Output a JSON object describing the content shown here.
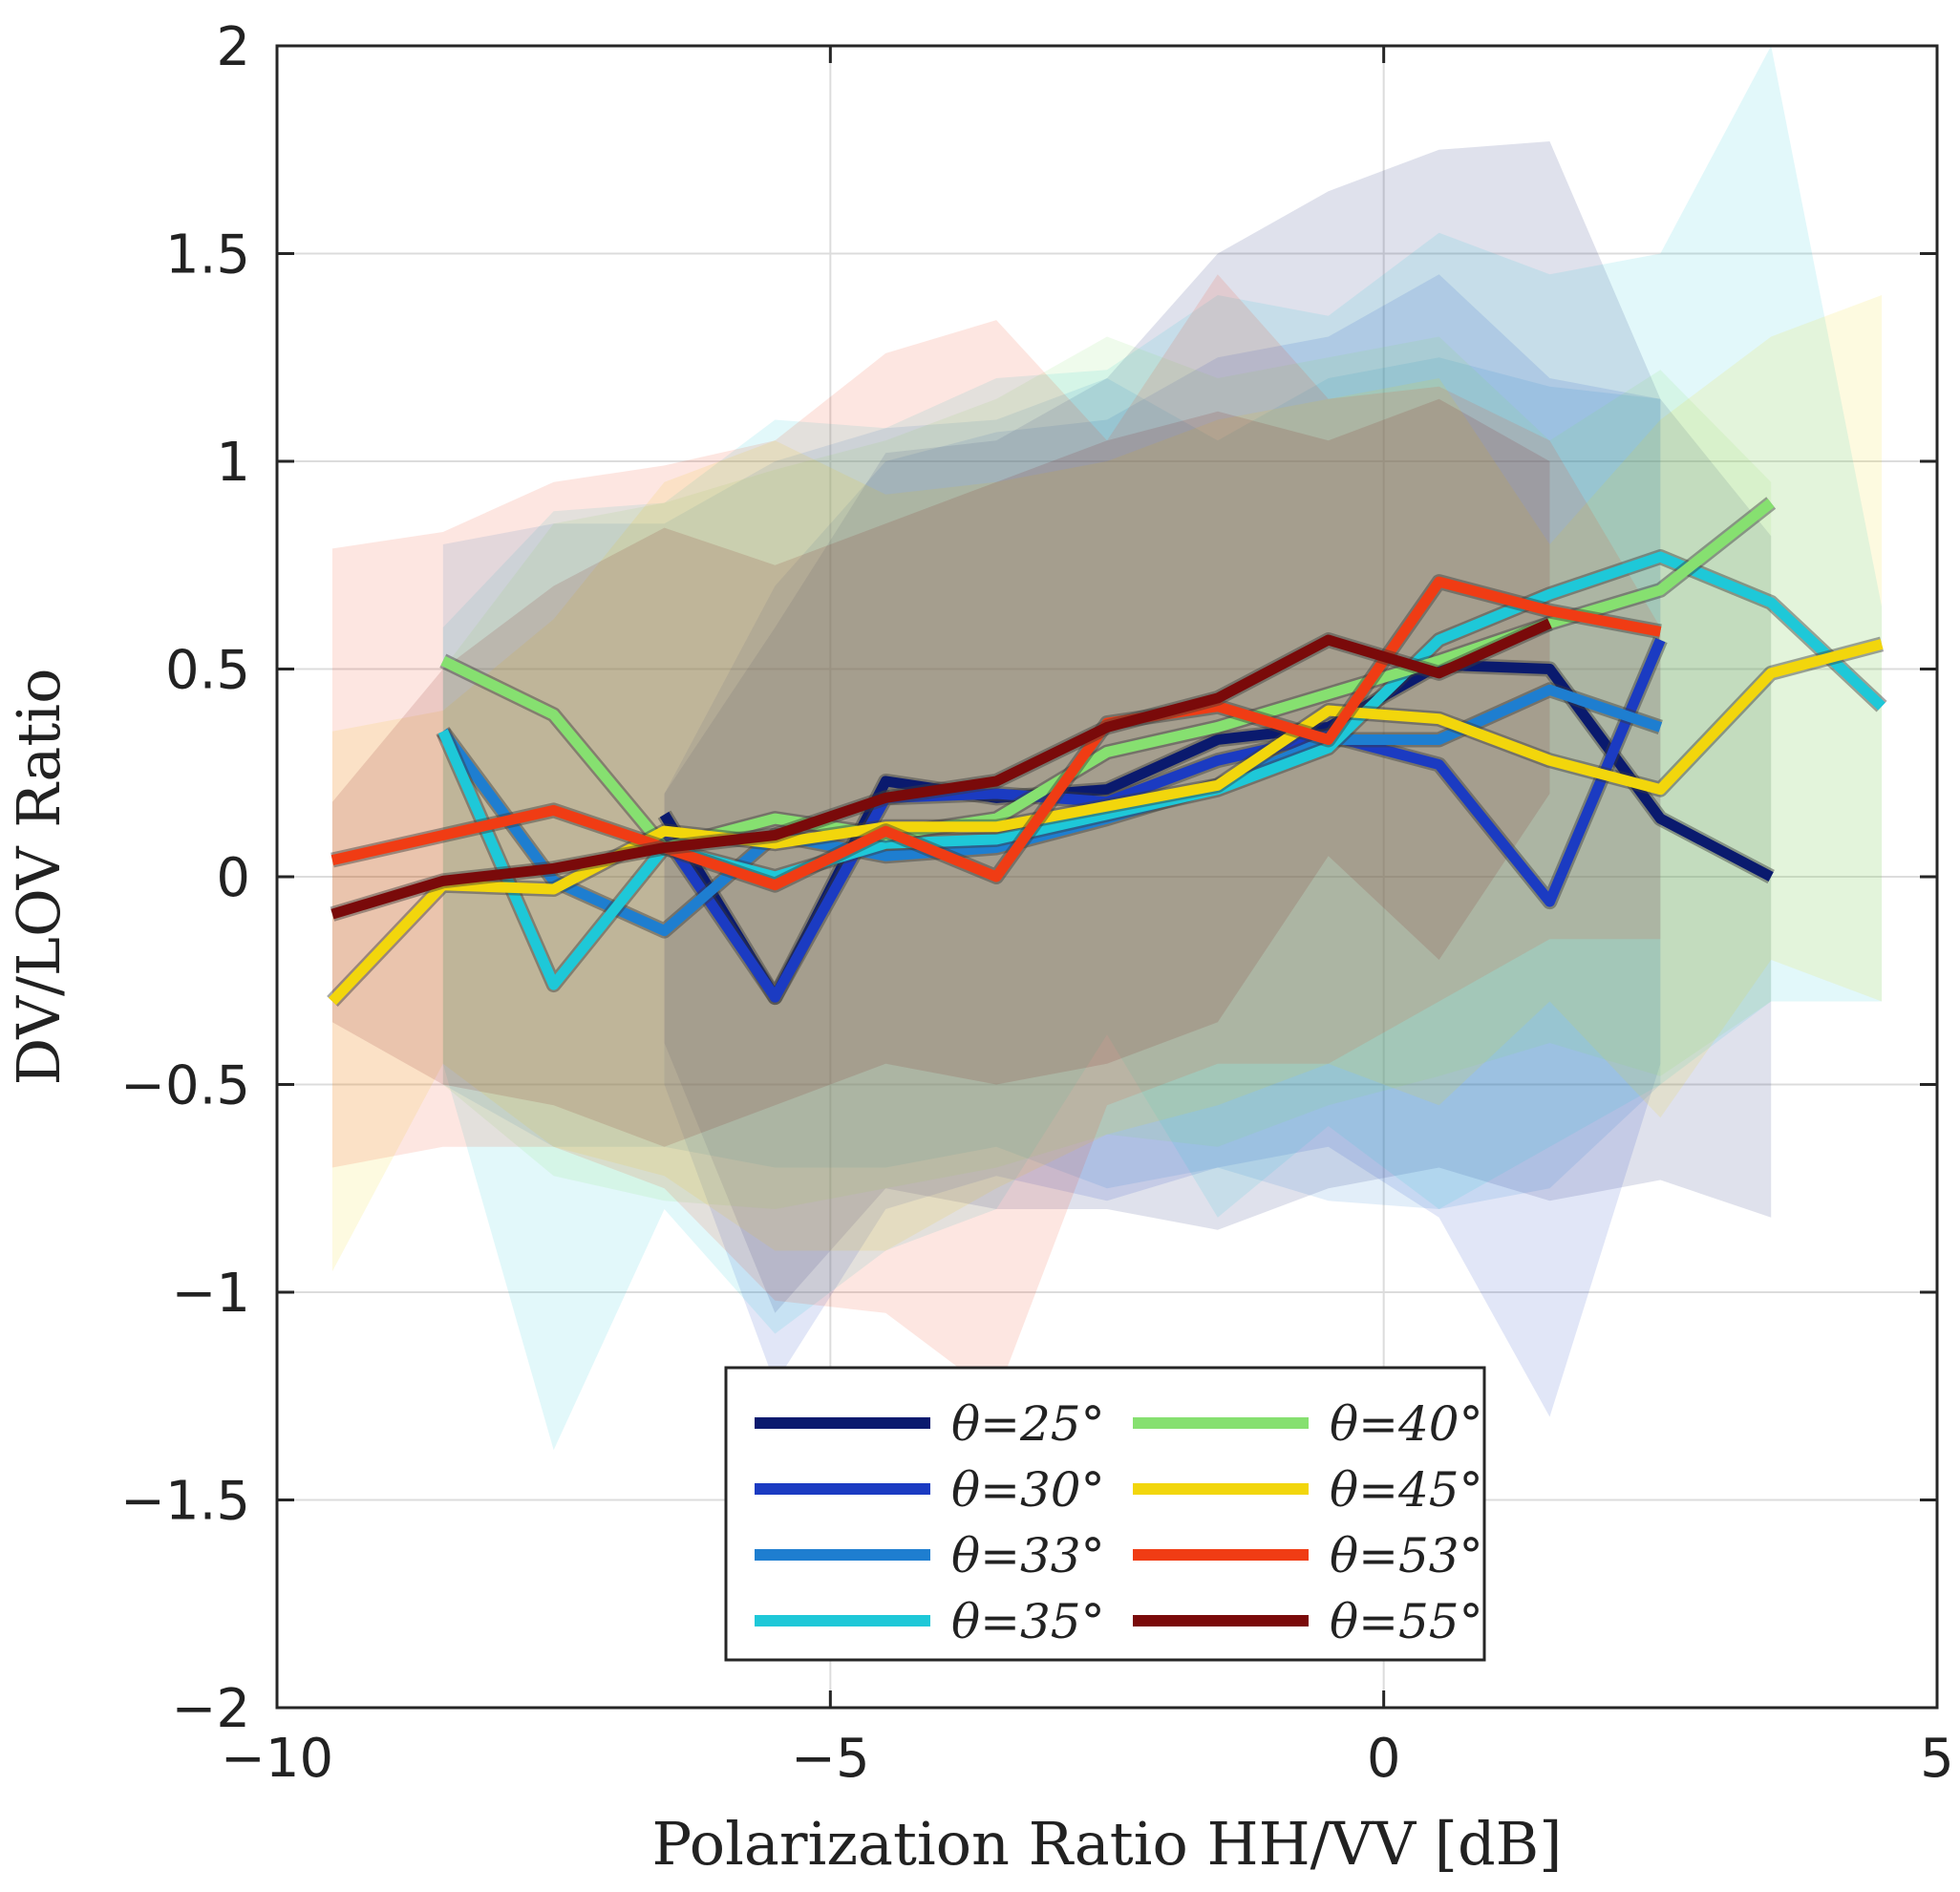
{
  "chart_data": {
    "type": "line",
    "title": "",
    "xlabel": "Polarization Ratio HH/VV [dB]",
    "ylabel": "DV/LOV Ratio",
    "xlim": [
      -10,
      5
    ],
    "ylim": [
      -2,
      2
    ],
    "xticks": [
      -10,
      -5,
      0,
      5
    ],
    "xtick_labels": [
      "−10",
      "−5",
      "0",
      "5"
    ],
    "yticks": [
      -2,
      -1.5,
      -1,
      -0.5,
      0,
      0.5,
      1,
      1.5,
      2
    ],
    "ytick_labels": [
      "−2",
      "−1.5",
      "−1",
      "−0.5",
      "0",
      "0.5",
      "1",
      "1.5",
      "2"
    ],
    "grid": true,
    "legend_position": "bottom-center",
    "series": [
      {
        "name": "θ=25°",
        "color": "#0a1a6e",
        "x": [
          -6.5,
          -5.5,
          -4.5,
          -3.5,
          -2.5,
          -1.5,
          -0.5,
          0.5,
          1.5,
          2.5,
          3.5
        ],
        "y": [
          0.15,
          -0.29,
          0.23,
          0.19,
          0.21,
          0.33,
          0.36,
          0.51,
          0.5,
          0.14,
          0.0
        ],
        "upper": [
          0.2,
          0.6,
          1.02,
          1.05,
          1.2,
          1.5,
          1.65,
          1.75,
          1.77,
          1.15,
          0.82
        ],
        "lower": [
          -0.4,
          -1.05,
          -0.75,
          -0.8,
          -0.8,
          -0.85,
          -0.75,
          -0.7,
          -0.78,
          -0.73,
          -0.82
        ]
      },
      {
        "name": "θ=30°",
        "color": "#1b3bc2",
        "x": [
          -6.5,
          -5.5,
          -4.5,
          -3.5,
          -2.5,
          -1.5,
          -0.5,
          0.5,
          1.5,
          2.5
        ],
        "y": [
          0.1,
          -0.29,
          0.19,
          0.2,
          0.18,
          0.28,
          0.34,
          0.27,
          -0.06,
          0.57
        ],
        "upper": [
          0.2,
          0.7,
          1.0,
          1.07,
          1.1,
          1.25,
          1.3,
          1.45,
          1.2,
          1.15
        ],
        "lower": [
          -0.5,
          -1.22,
          -0.8,
          -0.72,
          -0.78,
          -0.7,
          -0.65,
          -0.82,
          -1.3,
          -0.45
        ]
      },
      {
        "name": "θ=33°",
        "color": "#1e7ed0",
        "x": [
          -8.5,
          -7.5,
          -6.5,
          -5.5,
          -4.5,
          -3.5,
          -2.5,
          -1.5,
          -0.5,
          0.5,
          1.5,
          2.5
        ],
        "y": [
          0.35,
          -0.01,
          -0.13,
          0.1,
          0.05,
          0.07,
          0.14,
          0.22,
          0.33,
          0.33,
          0.45,
          0.36
        ],
        "upper": [
          0.8,
          0.85,
          0.85,
          1.0,
          1.08,
          1.1,
          1.2,
          1.05,
          1.2,
          1.25,
          1.18,
          1.15
        ],
        "lower": [
          -0.5,
          -0.65,
          -0.65,
          -0.7,
          -0.7,
          -0.65,
          -0.75,
          -0.7,
          -0.78,
          -0.8,
          -0.75,
          -0.5
        ]
      },
      {
        "name": "θ=35°",
        "color": "#1ec8d8",
        "x": [
          -8.5,
          -7.5,
          -6.5,
          -5.5,
          -4.5,
          -3.5,
          -2.5,
          -1.5,
          -0.5,
          0.5,
          1.5,
          2.5,
          3.5,
          4.5
        ],
        "y": [
          0.35,
          -0.26,
          0.07,
          0.0,
          0.08,
          0.09,
          0.15,
          0.21,
          0.31,
          0.57,
          0.68,
          0.77,
          0.66,
          0.41
        ],
        "upper": [
          0.6,
          0.88,
          0.9,
          1.1,
          1.08,
          1.2,
          1.22,
          1.4,
          1.35,
          1.55,
          1.45,
          1.5,
          2.0,
          0.65
        ],
        "lower": [
          -0.45,
          -1.38,
          -0.8,
          -1.1,
          -0.9,
          -0.8,
          -0.38,
          -0.82,
          -0.6,
          -0.8,
          -0.65,
          -0.5,
          -0.3,
          -0.3
        ]
      },
      {
        "name": "θ=40°",
        "color": "#86e070",
        "x": [
          -8.5,
          -7.5,
          -6.5,
          -5.5,
          -4.5,
          -3.5,
          -2.5,
          -1.5,
          -0.5,
          0.5,
          1.5,
          2.5,
          3.5
        ],
        "y": [
          0.52,
          0.39,
          0.07,
          0.14,
          0.1,
          0.14,
          0.3,
          0.36,
          0.44,
          0.52,
          0.61,
          0.69,
          0.9
        ],
        "upper": [
          0.5,
          0.85,
          0.9,
          0.98,
          1.05,
          1.15,
          1.3,
          1.2,
          1.25,
          1.3,
          1.05,
          1.22,
          0.95
        ],
        "lower": [
          -0.5,
          -0.72,
          -0.78,
          -0.8,
          -0.75,
          -0.7,
          -0.62,
          -0.65,
          -0.55,
          -0.48,
          -0.4,
          -0.48,
          -0.3
        ]
      },
      {
        "name": "θ=45°",
        "color": "#f2d60c",
        "x": [
          -9.5,
          -8.5,
          -7.5,
          -6.5,
          -5.5,
          -4.5,
          -3.5,
          -2.5,
          -1.5,
          -0.5,
          0.5,
          1.5,
          2.5,
          3.5,
          4.5
        ],
        "y": [
          -0.3,
          -0.02,
          -0.03,
          0.11,
          0.08,
          0.12,
          0.12,
          0.17,
          0.22,
          0.4,
          0.38,
          0.28,
          0.21,
          0.49,
          0.56
        ],
        "upper": [
          0.35,
          0.4,
          0.62,
          0.95,
          1.05,
          0.92,
          0.95,
          1.0,
          1.1,
          1.15,
          1.2,
          0.8,
          1.1,
          1.3,
          1.4
        ],
        "lower": [
          -0.95,
          -0.45,
          -0.65,
          -0.72,
          -0.9,
          -0.9,
          -0.75,
          -0.62,
          -0.55,
          -0.45,
          -0.55,
          -0.3,
          -0.58,
          -0.2,
          -0.3
        ]
      },
      {
        "name": "θ=53°",
        "color": "#f03c14",
        "x": [
          -9.5,
          -8.5,
          -7.5,
          -6.5,
          -5.5,
          -4.5,
          -3.5,
          -2.5,
          -1.5,
          -0.5,
          0.5,
          1.5,
          2.5
        ],
        "y": [
          0.04,
          0.1,
          0.16,
          0.07,
          -0.02,
          0.11,
          0.0,
          0.37,
          0.41,
          0.33,
          0.71,
          0.64,
          0.59
        ],
        "upper": [
          0.79,
          0.83,
          0.95,
          0.99,
          1.05,
          1.26,
          1.34,
          1.05,
          1.45,
          1.15,
          1.18,
          1.05,
          0.6
        ],
        "lower": [
          -0.7,
          -0.65,
          -0.65,
          -0.75,
          -1.02,
          -1.05,
          -1.25,
          -0.55,
          -0.45,
          -0.45,
          -0.3,
          -0.15,
          -0.15
        ]
      },
      {
        "name": "θ=55°",
        "color": "#7a0a0a",
        "x": [
          -9.5,
          -8.5,
          -7.5,
          -6.5,
          -5.5,
          -4.5,
          -3.5,
          -2.5,
          -1.5,
          -0.5,
          0.5,
          1.5
        ],
        "y": [
          -0.09,
          -0.01,
          0.02,
          0.07,
          0.1,
          0.19,
          0.23,
          0.36,
          0.43,
          0.57,
          0.49,
          0.61
        ],
        "upper": [
          0.18,
          0.5,
          0.7,
          0.84,
          0.75,
          0.85,
          0.95,
          1.05,
          1.12,
          1.05,
          1.15,
          1.0
        ],
        "lower": [
          -0.35,
          -0.5,
          -0.55,
          -0.65,
          -0.55,
          -0.45,
          -0.5,
          -0.45,
          -0.35,
          0.05,
          -0.2,
          0.2
        ]
      }
    ]
  }
}
